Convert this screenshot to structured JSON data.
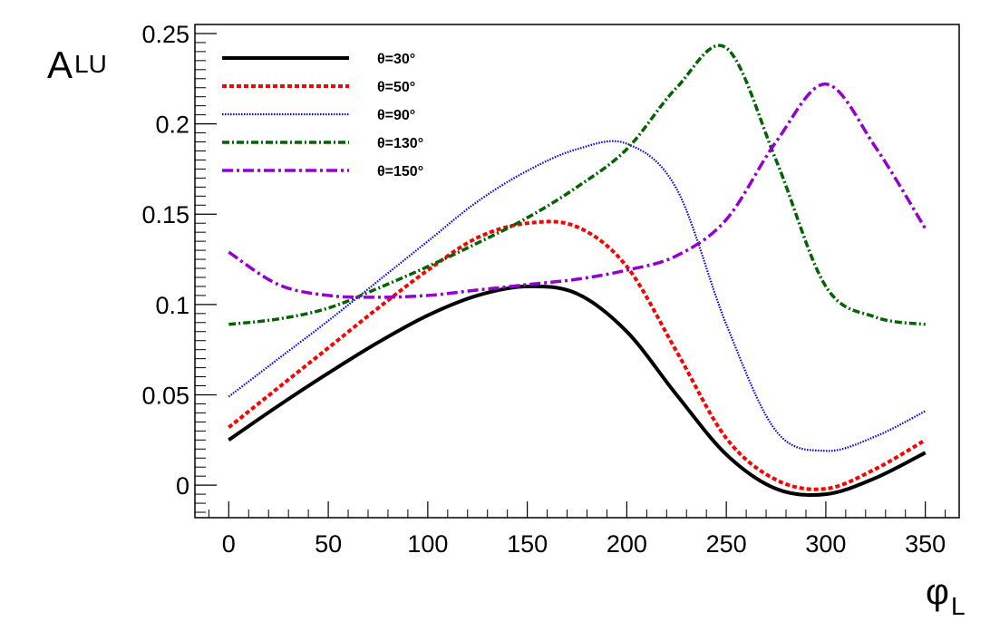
{
  "chart_data": {
    "type": "line",
    "title": "",
    "xlabel": "φ",
    "xlabel_sub": "L",
    "ylabel": "A",
    "ylabel_sub": "LU",
    "xlim": [
      -17,
      367
    ],
    "ylim": [
      -0.018,
      0.255
    ],
    "xticks": [
      0,
      50,
      100,
      150,
      200,
      250,
      300,
      350
    ],
    "xtick_labels": [
      "0",
      "50",
      "100",
      "150",
      "200",
      "250",
      "300",
      "350"
    ],
    "yticks": [
      0,
      0.05,
      0.1,
      0.15,
      0.2,
      0.25
    ],
    "ytick_labels": [
      "0",
      "0.05",
      "0.1",
      "0.15",
      "0.2",
      "0.25"
    ],
    "grid": false,
    "legend_position": "top-left",
    "x": [
      0,
      25,
      50,
      75,
      100,
      125,
      150,
      175,
      200,
      225,
      250,
      275,
      300,
      325,
      350
    ],
    "series": [
      {
        "name": "θ=30°",
        "style": "solid",
        "color": "#000000",
        "values": [
          0.025,
          0.044,
          0.062,
          0.079,
          0.094,
          0.105,
          0.11,
          0.106,
          0.085,
          0.05,
          0.017,
          -0.002,
          -0.005,
          0.004,
          0.018
        ]
      },
      {
        "name": "θ=50°",
        "style": "dashed",
        "color": "#ff0000",
        "values": [
          0.032,
          0.054,
          0.076,
          0.098,
          0.119,
          0.137,
          0.145,
          0.143,
          0.121,
          0.074,
          0.026,
          0.003,
          -0.002,
          0.009,
          0.025
        ]
      },
      {
        "name": "θ=90°",
        "style": "dotted",
        "color": "#0000ff",
        "values": [
          0.049,
          0.07,
          0.091,
          0.113,
          0.135,
          0.157,
          0.174,
          0.186,
          0.189,
          0.164,
          0.089,
          0.03,
          0.019,
          0.027,
          0.041
        ]
      },
      {
        "name": "θ=130°",
        "style": "dashdot",
        "color": "#006400",
        "values": [
          0.089,
          0.092,
          0.098,
          0.109,
          0.121,
          0.134,
          0.148,
          0.165,
          0.186,
          0.22,
          0.242,
          0.18,
          0.11,
          0.093,
          0.089
        ]
      },
      {
        "name": "θ=150°",
        "style": "dashdot-long",
        "color": "#9400d3",
        "values": [
          0.129,
          0.111,
          0.105,
          0.104,
          0.105,
          0.108,
          0.111,
          0.114,
          0.119,
          0.127,
          0.147,
          0.19,
          0.222,
          0.187,
          0.142
        ]
      }
    ]
  }
}
